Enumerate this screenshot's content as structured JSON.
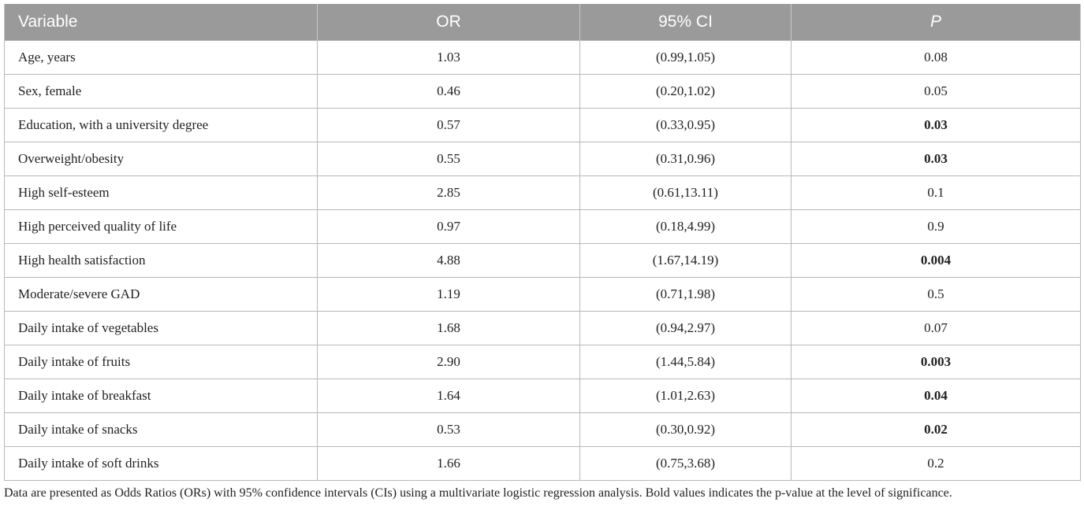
{
  "table": {
    "headers": [
      "Variable",
      "OR",
      "95% CI",
      "P"
    ],
    "rows": [
      {
        "variable": "Age, years",
        "or": "1.03",
        "ci": "(0.99,1.05)",
        "p": "0.08",
        "bold": false
      },
      {
        "variable": "Sex, female",
        "or": "0.46",
        "ci": "(0.20,1.02)",
        "p": "0.05",
        "bold": false
      },
      {
        "variable": "Education, with a university degree",
        "or": "0.57",
        "ci": "(0.33,0.95)",
        "p": "0.03",
        "bold": true
      },
      {
        "variable": "Overweight/obesity",
        "or": "0.55",
        "ci": "(0.31,0.96)",
        "p": "0.03",
        "bold": true
      },
      {
        "variable": "High self-esteem",
        "or": "2.85",
        "ci": "(0.61,13.11)",
        "p": "0.1",
        "bold": false
      },
      {
        "variable": "High perceived quality of life",
        "or": "0.97",
        "ci": "(0.18,4.99)",
        "p": "0.9",
        "bold": false
      },
      {
        "variable": "High health satisfaction",
        "or": "4.88",
        "ci": "(1.67,14.19)",
        "p": "0.004",
        "bold": true
      },
      {
        "variable": "Moderate/severe GAD",
        "or": "1.19",
        "ci": "(0.71,1.98)",
        "p": "0.5",
        "bold": false
      },
      {
        "variable": "Daily intake of vegetables",
        "or": "1.68",
        "ci": "(0.94,2.97)",
        "p": "0.07",
        "bold": false
      },
      {
        "variable": "Daily intake of fruits",
        "or": "2.90",
        "ci": "(1.44,5.84)",
        "p": "0.003",
        "bold": true
      },
      {
        "variable": "Daily intake of breakfast",
        "or": "1.64",
        "ci": "(1.01,2.63)",
        "p": "0.04",
        "bold": true
      },
      {
        "variable": "Daily intake of snacks",
        "or": "0.53",
        "ci": "(0.30,0.92)",
        "p": "0.02",
        "bold": true
      },
      {
        "variable": "Daily intake of soft drinks",
        "or": "1.66",
        "ci": "(0.75,3.68)",
        "p": "0.2",
        "bold": false
      }
    ]
  },
  "footnote": "Data are presented as Odds Ratios (ORs) with 95% confidence intervals (CIs) using a multivariate logistic regression analysis. Bold values indicates the p-value at the level of significance.",
  "colors": {
    "header_bg": "#9a9a9a",
    "header_text": "#ffffff",
    "border": "#b8b8b8"
  }
}
